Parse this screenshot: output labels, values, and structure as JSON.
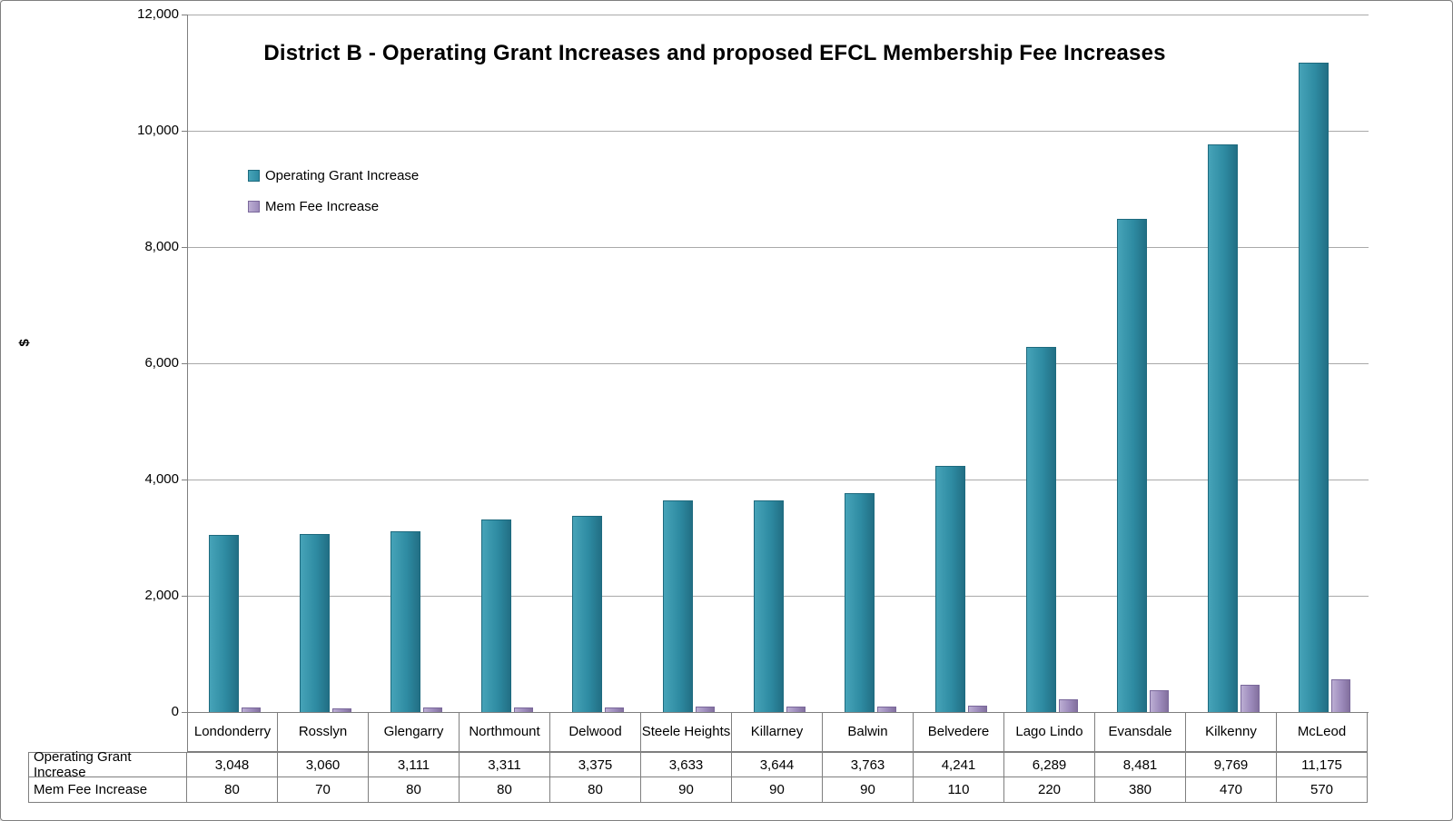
{
  "chart_data": {
    "type": "bar",
    "title": "District B - Operating Grant Increases and proposed EFCL Membership Fee Increases",
    "ylabel": "$",
    "ylim": [
      0,
      12000
    ],
    "ytick_step": 2000,
    "ytick_labels": [
      "0",
      "2,000",
      "4,000",
      "6,000",
      "8,000",
      "10,000",
      "12,000"
    ],
    "grid": true,
    "legend_position": "top-left-inside",
    "categories": [
      "Londonderry",
      "Rosslyn",
      "Glengarry",
      "Northmount",
      "Delwood",
      "Steele Heights",
      "Killarney",
      "Balwin",
      "Belvedere",
      "Lago Lindo",
      "Evansdale",
      "Kilkenny",
      "McLeod"
    ],
    "series": [
      {
        "name": "Operating Grant Increase",
        "color": "#2E8BA2",
        "values": [
          3048,
          3060,
          3111,
          3311,
          3375,
          3633,
          3644,
          3763,
          4241,
          6289,
          8481,
          9769,
          11175
        ],
        "labels": [
          "3,048",
          "3,060",
          "3,111",
          "3,311",
          "3,375",
          "3,633",
          "3,644",
          "3,763",
          "4,241",
          "6,289",
          "8,481",
          "9,769",
          "11,175"
        ]
      },
      {
        "name": "Mem Fee Increase",
        "color": "#9C8ABB",
        "values": [
          80,
          70,
          80,
          80,
          80,
          90,
          90,
          90,
          110,
          220,
          380,
          470,
          570
        ],
        "labels": [
          "80",
          "70",
          "80",
          "80",
          "80",
          "90",
          "90",
          "90",
          "110",
          "220",
          "380",
          "470",
          "570"
        ]
      }
    ]
  }
}
